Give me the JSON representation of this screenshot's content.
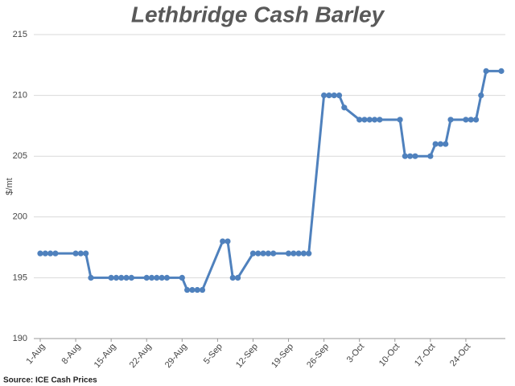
{
  "chart_data": {
    "type": "line",
    "title": "Lethbridge Cash Barley",
    "y_label": "$/mt",
    "source": "Source: ICE Cash Prices",
    "x": [
      "1-Aug",
      "2-Aug",
      "3-Aug",
      "4-Aug",
      "8-Aug",
      "9-Aug",
      "10-Aug",
      "11-Aug",
      "15-Aug",
      "16-Aug",
      "17-Aug",
      "18-Aug",
      "19-Aug",
      "22-Aug",
      "23-Aug",
      "24-Aug",
      "25-Aug",
      "26-Aug",
      "29-Aug",
      "30-Aug",
      "31-Aug",
      "1-Sep",
      "2-Sep",
      "6-Sep",
      "7-Sep",
      "8-Sep",
      "9-Sep",
      "12-Sep",
      "13-Sep",
      "14-Sep",
      "15-Sep",
      "16-Sep",
      "19-Sep",
      "20-Sep",
      "21-Sep",
      "22-Sep",
      "23-Sep",
      "26-Sep",
      "27-Sep",
      "28-Sep",
      "29-Sep",
      "30-Sep",
      "3-Oct",
      "4-Oct",
      "5-Oct",
      "6-Oct",
      "7-Oct",
      "11-Oct",
      "12-Oct",
      "13-Oct",
      "14-Oct",
      "17-Oct",
      "18-Oct",
      "19-Oct",
      "20-Oct",
      "21-Oct",
      "24-Oct",
      "25-Oct",
      "26-Oct",
      "27-Oct",
      "28-Oct",
      "31-Oct"
    ],
    "series": [
      {
        "name": "Lethbridge Cash Barley",
        "color": "#4f81bd",
        "values": [
          197,
          197,
          197,
          197,
          197,
          197,
          197,
          195,
          195,
          195,
          195,
          195,
          195,
          195,
          195,
          195,
          195,
          195,
          195,
          194,
          194,
          194,
          194,
          198,
          198,
          195,
          195,
          197,
          197,
          197,
          197,
          197,
          197,
          197,
          197,
          197,
          197,
          210,
          210,
          210,
          210,
          209,
          208,
          208,
          208,
          208,
          208,
          208,
          205,
          205,
          205,
          205,
          206,
          206,
          206,
          208,
          208,
          208,
          208,
          210,
          212,
          212
        ]
      }
    ],
    "xticks": [
      "1-Aug",
      "8-Aug",
      "15-Aug",
      "22-Aug",
      "29-Aug",
      "5-Sep",
      "12-Sep",
      "19-Sep",
      "26-Sep",
      "3-Oct",
      "10-Oct",
      "17-Oct",
      "24-Oct"
    ],
    "ylim": [
      190,
      215
    ],
    "yticks": [
      190,
      195,
      200,
      205,
      210,
      215
    ],
    "grid": true
  }
}
